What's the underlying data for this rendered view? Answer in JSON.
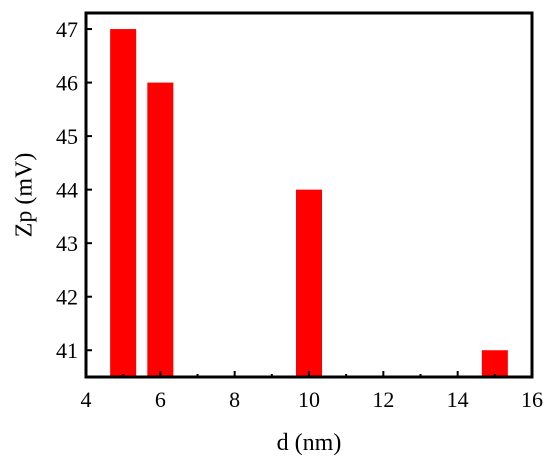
{
  "chart_data": {
    "type": "bar",
    "title": "",
    "xlabel": "d (nm)",
    "ylabel": "Zp (mV)",
    "x": [
      5,
      6,
      10,
      15
    ],
    "values": [
      47,
      46,
      44,
      41
    ],
    "xlim": [
      4,
      16
    ],
    "ylim": [
      40.5,
      47.3
    ],
    "xticks": [
      4,
      6,
      8,
      10,
      12,
      14,
      16
    ],
    "yticks": [
      41,
      42,
      43,
      44,
      45,
      46,
      47
    ],
    "bar_width": 0.7,
    "bar_color": "#ff0000",
    "grid": false,
    "legend": "none"
  }
}
